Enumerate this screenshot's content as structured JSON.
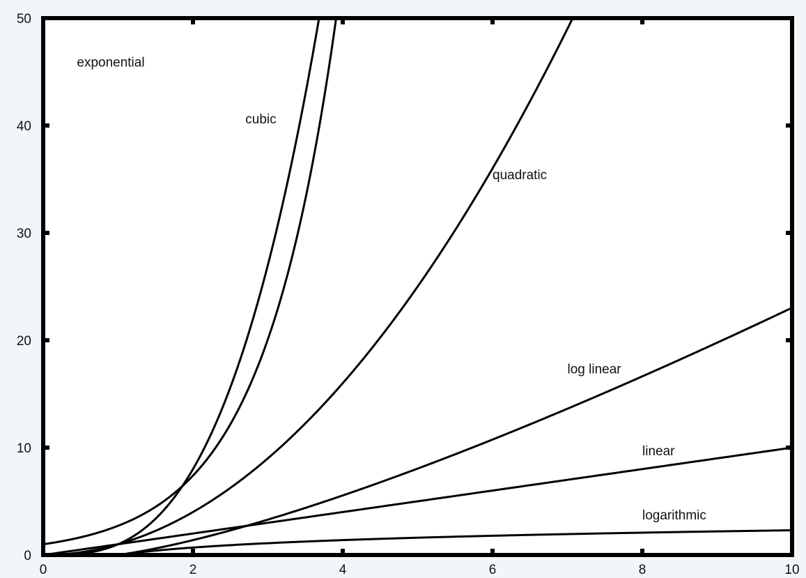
{
  "chart_data": {
    "type": "line",
    "title": "",
    "xlabel": "",
    "ylabel": "",
    "xlim": [
      0,
      10
    ],
    "ylim": [
      0,
      50
    ],
    "x_ticks": [
      0,
      2,
      4,
      6,
      8,
      10
    ],
    "y_ticks": [
      0,
      10,
      20,
      30,
      40,
      50
    ],
    "x_tick_labels": [
      "0",
      "2",
      "4",
      "6",
      "8",
      "10"
    ],
    "y_tick_labels": [
      "0",
      "10",
      "20",
      "30",
      "40",
      "50"
    ],
    "grid": false,
    "legend": "none",
    "line_color": "#000000",
    "series": [
      {
        "name": "exponential",
        "function": "exp(x)",
        "x": [
          0,
          0.5,
          1,
          1.5,
          2,
          2.5,
          3,
          3.5,
          3.912
        ],
        "y": [
          1,
          1.65,
          2.72,
          4.48,
          7.39,
          12.18,
          20.09,
          33.12,
          50
        ]
      },
      {
        "name": "cubic",
        "function": "x^3",
        "x": [
          0,
          0.5,
          1,
          1.5,
          2,
          2.5,
          3,
          3.5,
          3.684
        ],
        "y": [
          0,
          0.125,
          1,
          3.375,
          8,
          15.63,
          27,
          42.88,
          50
        ]
      },
      {
        "name": "quadratic",
        "function": "x^2",
        "x": [
          0,
          1,
          2,
          3,
          4,
          5,
          6,
          7,
          7.071
        ],
        "y": [
          0,
          1,
          4,
          9,
          16,
          25,
          36,
          49,
          50
        ]
      },
      {
        "name": "log linear",
        "function": "x*ln(x)",
        "x": [
          1,
          2,
          3,
          4,
          5,
          6,
          7,
          8,
          9,
          10
        ],
        "y": [
          0,
          1.39,
          3.3,
          5.55,
          8.05,
          10.75,
          13.62,
          16.64,
          19.78,
          23.03
        ]
      },
      {
        "name": "linear",
        "function": "x",
        "x": [
          0,
          10
        ],
        "y": [
          0,
          10
        ]
      },
      {
        "name": "logarithmic",
        "function": "ln(x)",
        "x": [
          1,
          2,
          3,
          4,
          5,
          6,
          7,
          8,
          9,
          10
        ],
        "y": [
          0,
          0.69,
          1.1,
          1.39,
          1.61,
          1.79,
          1.95,
          2.08,
          2.2,
          2.3
        ]
      }
    ],
    "annotations": [
      {
        "text": "exponential",
        "x": 0.45,
        "y": 45.5
      },
      {
        "text": "cubic",
        "x": 2.7,
        "y": 40.2
      },
      {
        "text": "quadratic",
        "x": 6.0,
        "y": 35.0
      },
      {
        "text": "log linear",
        "x": 7.0,
        "y": 16.9
      },
      {
        "text": "linear",
        "x": 8.0,
        "y": 9.3
      },
      {
        "text": "logarithmic",
        "x": 8.0,
        "y": 3.3
      }
    ]
  }
}
